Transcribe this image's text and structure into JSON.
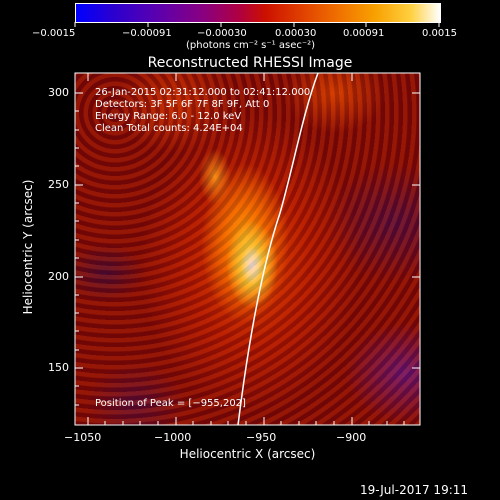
{
  "colorbar": {
    "tick_labels": [
      "−0.0015",
      "−0.00091",
      "−0.00030",
      "0.00030",
      "0.00091",
      "0.0015"
    ],
    "units_label": "(photons cm⁻² s⁻¹ asec⁻²)"
  },
  "plot": {
    "title": "Reconstructed RHESSI Image",
    "xlabel": "Heliocentric X (arcsec)",
    "ylabel": "Heliocentric Y (arcsec)",
    "x_ticks": [
      "−1050",
      "−1000",
      "−950",
      "−900"
    ],
    "y_ticks": [
      "300",
      "250",
      "200",
      "150"
    ],
    "info_lines": [
      "26-Jan-2015 02:31:12.000 to 02:41:12.000",
      "Detectors: 3F 5F 6F 7F 8F 9F, Att 0",
      "Energy Range: 6.0 - 12.0 keV",
      "Clean     Total counts: 4.24E+04"
    ],
    "peak_label": "Position of Peak = [−955,202]"
  },
  "footer": {
    "timestamp": "19-Jul-2017 19:11"
  }
}
